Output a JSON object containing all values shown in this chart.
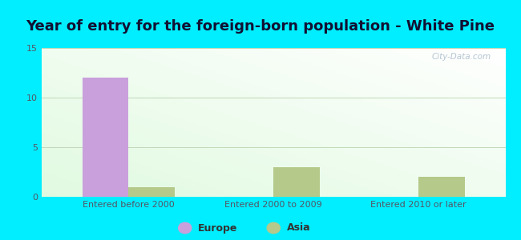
{
  "title": "Year of entry for the foreign-born population - White Pine",
  "categories": [
    "Entered before 2000",
    "Entered 2000 to 2009",
    "Entered 2010 or later"
  ],
  "europe_values": [
    12,
    0,
    0
  ],
  "asia_values": [
    1,
    3,
    2
  ],
  "europe_color": "#c9a0dc",
  "asia_color": "#b5c98a",
  "ylim": [
    0,
    15
  ],
  "yticks": [
    0,
    5,
    10,
    15
  ],
  "figure_bg": "#00eeff",
  "plot_bg_topleft": "#c8e6c0",
  "plot_bg_bottomright": "#f8fff8",
  "grid_color": "#c0d8b8",
  "watermark": "City-Data.com",
  "bar_width": 0.32,
  "legend_labels": [
    "Europe",
    "Asia"
  ],
  "title_fontsize": 13,
  "tick_fontsize": 8,
  "legend_fontsize": 9
}
